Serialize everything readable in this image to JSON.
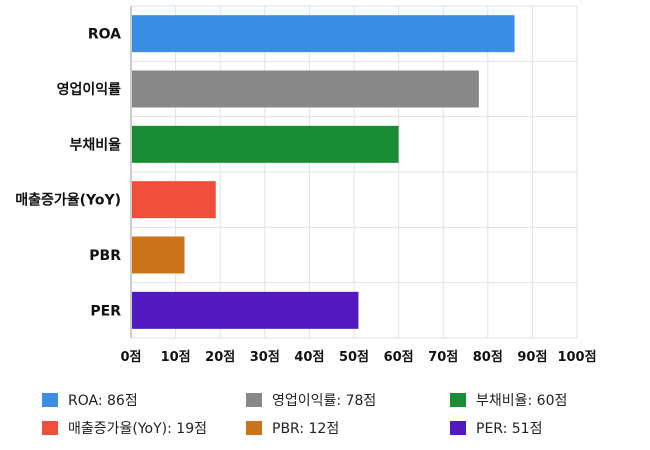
{
  "chart_data": {
    "type": "bar",
    "orientation": "horizontal",
    "categories": [
      "ROA",
      "영업이익률",
      "부채비율",
      "매출증가율(YoY)",
      "PBR",
      "PER"
    ],
    "values": [
      86,
      78,
      60,
      19,
      12,
      51
    ],
    "colors": [
      "#3a8ee6",
      "#888888",
      "#1a8c35",
      "#ee4e3a",
      "#cc7419",
      "#5219c0"
    ],
    "xlim": [
      0,
      100
    ],
    "x_ticks": [
      "0점",
      "10점",
      "20점",
      "30점",
      "40점",
      "50점",
      "60점",
      "70점",
      "80점",
      "90점",
      "100점"
    ],
    "grid": true,
    "legend_position": "bottom",
    "legend": [
      {
        "label": "ROA: 86점",
        "color": "#3a8ee6"
      },
      {
        "label": "영업이익률: 78점",
        "color": "#888888"
      },
      {
        "label": "부채비율: 60점",
        "color": "#1a8c35"
      },
      {
        "label": "매출증가율(YoY): 19점",
        "color": "#ee4e3a"
      },
      {
        "label": "PBR: 12점",
        "color": "#cc7419"
      },
      {
        "label": "PER: 51점",
        "color": "#5219c0"
      }
    ]
  }
}
